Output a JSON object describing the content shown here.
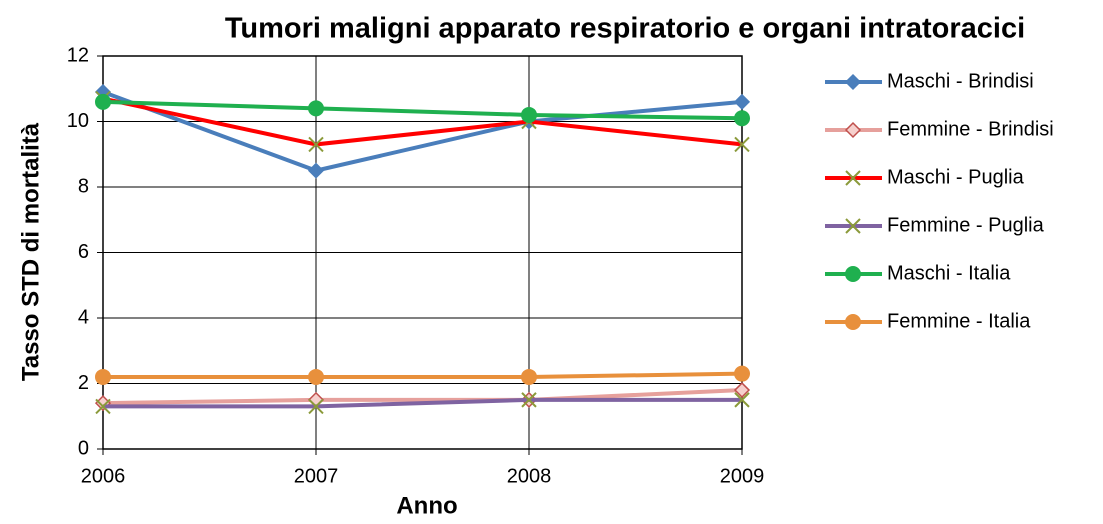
{
  "chart_data": {
    "type": "line",
    "title": "Tumori maligni apparato respiratorio e organi intratoracici",
    "x_label": "Anno",
    "y_label": "Tasso STD di mortalità",
    "x": [
      2006,
      2007,
      2008,
      2009
    ],
    "xlim": [
      2006,
      2009
    ],
    "xticks": [
      2006,
      2007,
      2008,
      2009
    ],
    "ylim": [
      0,
      12
    ],
    "yticks": [
      0,
      2,
      4,
      6,
      8,
      10,
      12
    ],
    "grid": true,
    "legend": "right",
    "series": [
      {
        "name": "Maschi - Brindisi",
        "color": "#4a7ebb",
        "marker": "diamond",
        "values": [
          10.9,
          8.5,
          10.0,
          10.6
        ]
      },
      {
        "name": "Femmine - Brindisi",
        "color": "#e6a09c",
        "marker": "diamond",
        "values": [
          1.4,
          1.5,
          1.5,
          1.8
        ]
      },
      {
        "name": "Maschi - Puglia",
        "color": "#ff0000",
        "marker": "x",
        "values": [
          10.7,
          9.3,
          10.0,
          9.3
        ]
      },
      {
        "name": "Femmine - Puglia",
        "color": "#7f63a1",
        "marker": "x",
        "values": [
          1.3,
          1.3,
          1.5,
          1.5
        ]
      },
      {
        "name": "Maschi - Italia",
        "color": "#1fb04f",
        "marker": "circle",
        "values": [
          10.6,
          10.4,
          10.2,
          10.1
        ]
      },
      {
        "name": "Femmine - Italia",
        "color": "#e8903c",
        "marker": "circle",
        "values": [
          2.2,
          2.2,
          2.2,
          2.3
        ]
      }
    ]
  }
}
